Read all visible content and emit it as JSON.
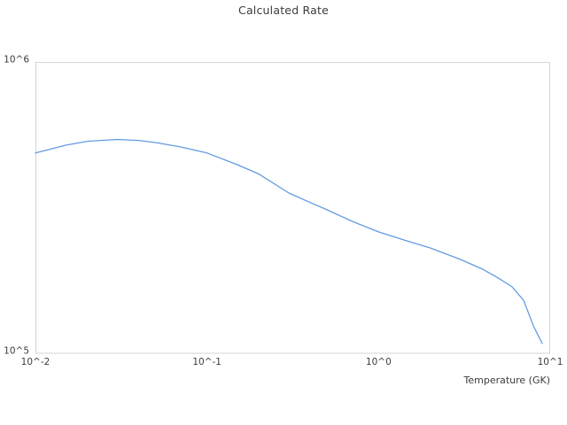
{
  "colors": {
    "line": "#639be0",
    "frame": "#d4d4d4",
    "text": "#3c3c3c",
    "background": "#ffffff"
  },
  "chart_data": {
    "type": "line",
    "title": "Calculated Rate",
    "xlabel": "Temperature (GK)",
    "ylabel": "",
    "x_scale": "log",
    "y_scale": "log",
    "xlim": [
      0.01,
      10
    ],
    "ylim": [
      100000,
      1000000
    ],
    "grid": false,
    "legend": false,
    "x_ticks": [
      {
        "value": 0.01,
        "label": "10^-2"
      },
      {
        "value": 0.1,
        "label": "10^-1"
      },
      {
        "value": 1,
        "label": "10^0"
      },
      {
        "value": 10,
        "label": "10^1"
      }
    ],
    "y_ticks": [
      {
        "value": 100000,
        "label": "10^5"
      },
      {
        "value": 1000000,
        "label": "10^6"
      }
    ],
    "series": [
      {
        "name": "calculated-rate",
        "x": [
          0.01,
          0.015,
          0.02,
          0.03,
          0.04,
          0.05,
          0.07,
          0.1,
          0.15,
          0.2,
          0.3,
          0.4,
          0.5,
          0.7,
          1.0,
          1.5,
          2.0,
          3.0,
          4.0,
          5.0,
          6.0,
          7.0,
          8.0,
          9.0
        ],
        "y": [
          487000,
          518000,
          534000,
          542000,
          538000,
          529000,
          511000,
          487000,
          444000,
          413000,
          355000,
          329000,
          311000,
          284000,
          261000,
          242000,
          230000,
          210000,
          195000,
          181000,
          169000,
          152000,
          124000,
          108000
        ]
      }
    ]
  }
}
